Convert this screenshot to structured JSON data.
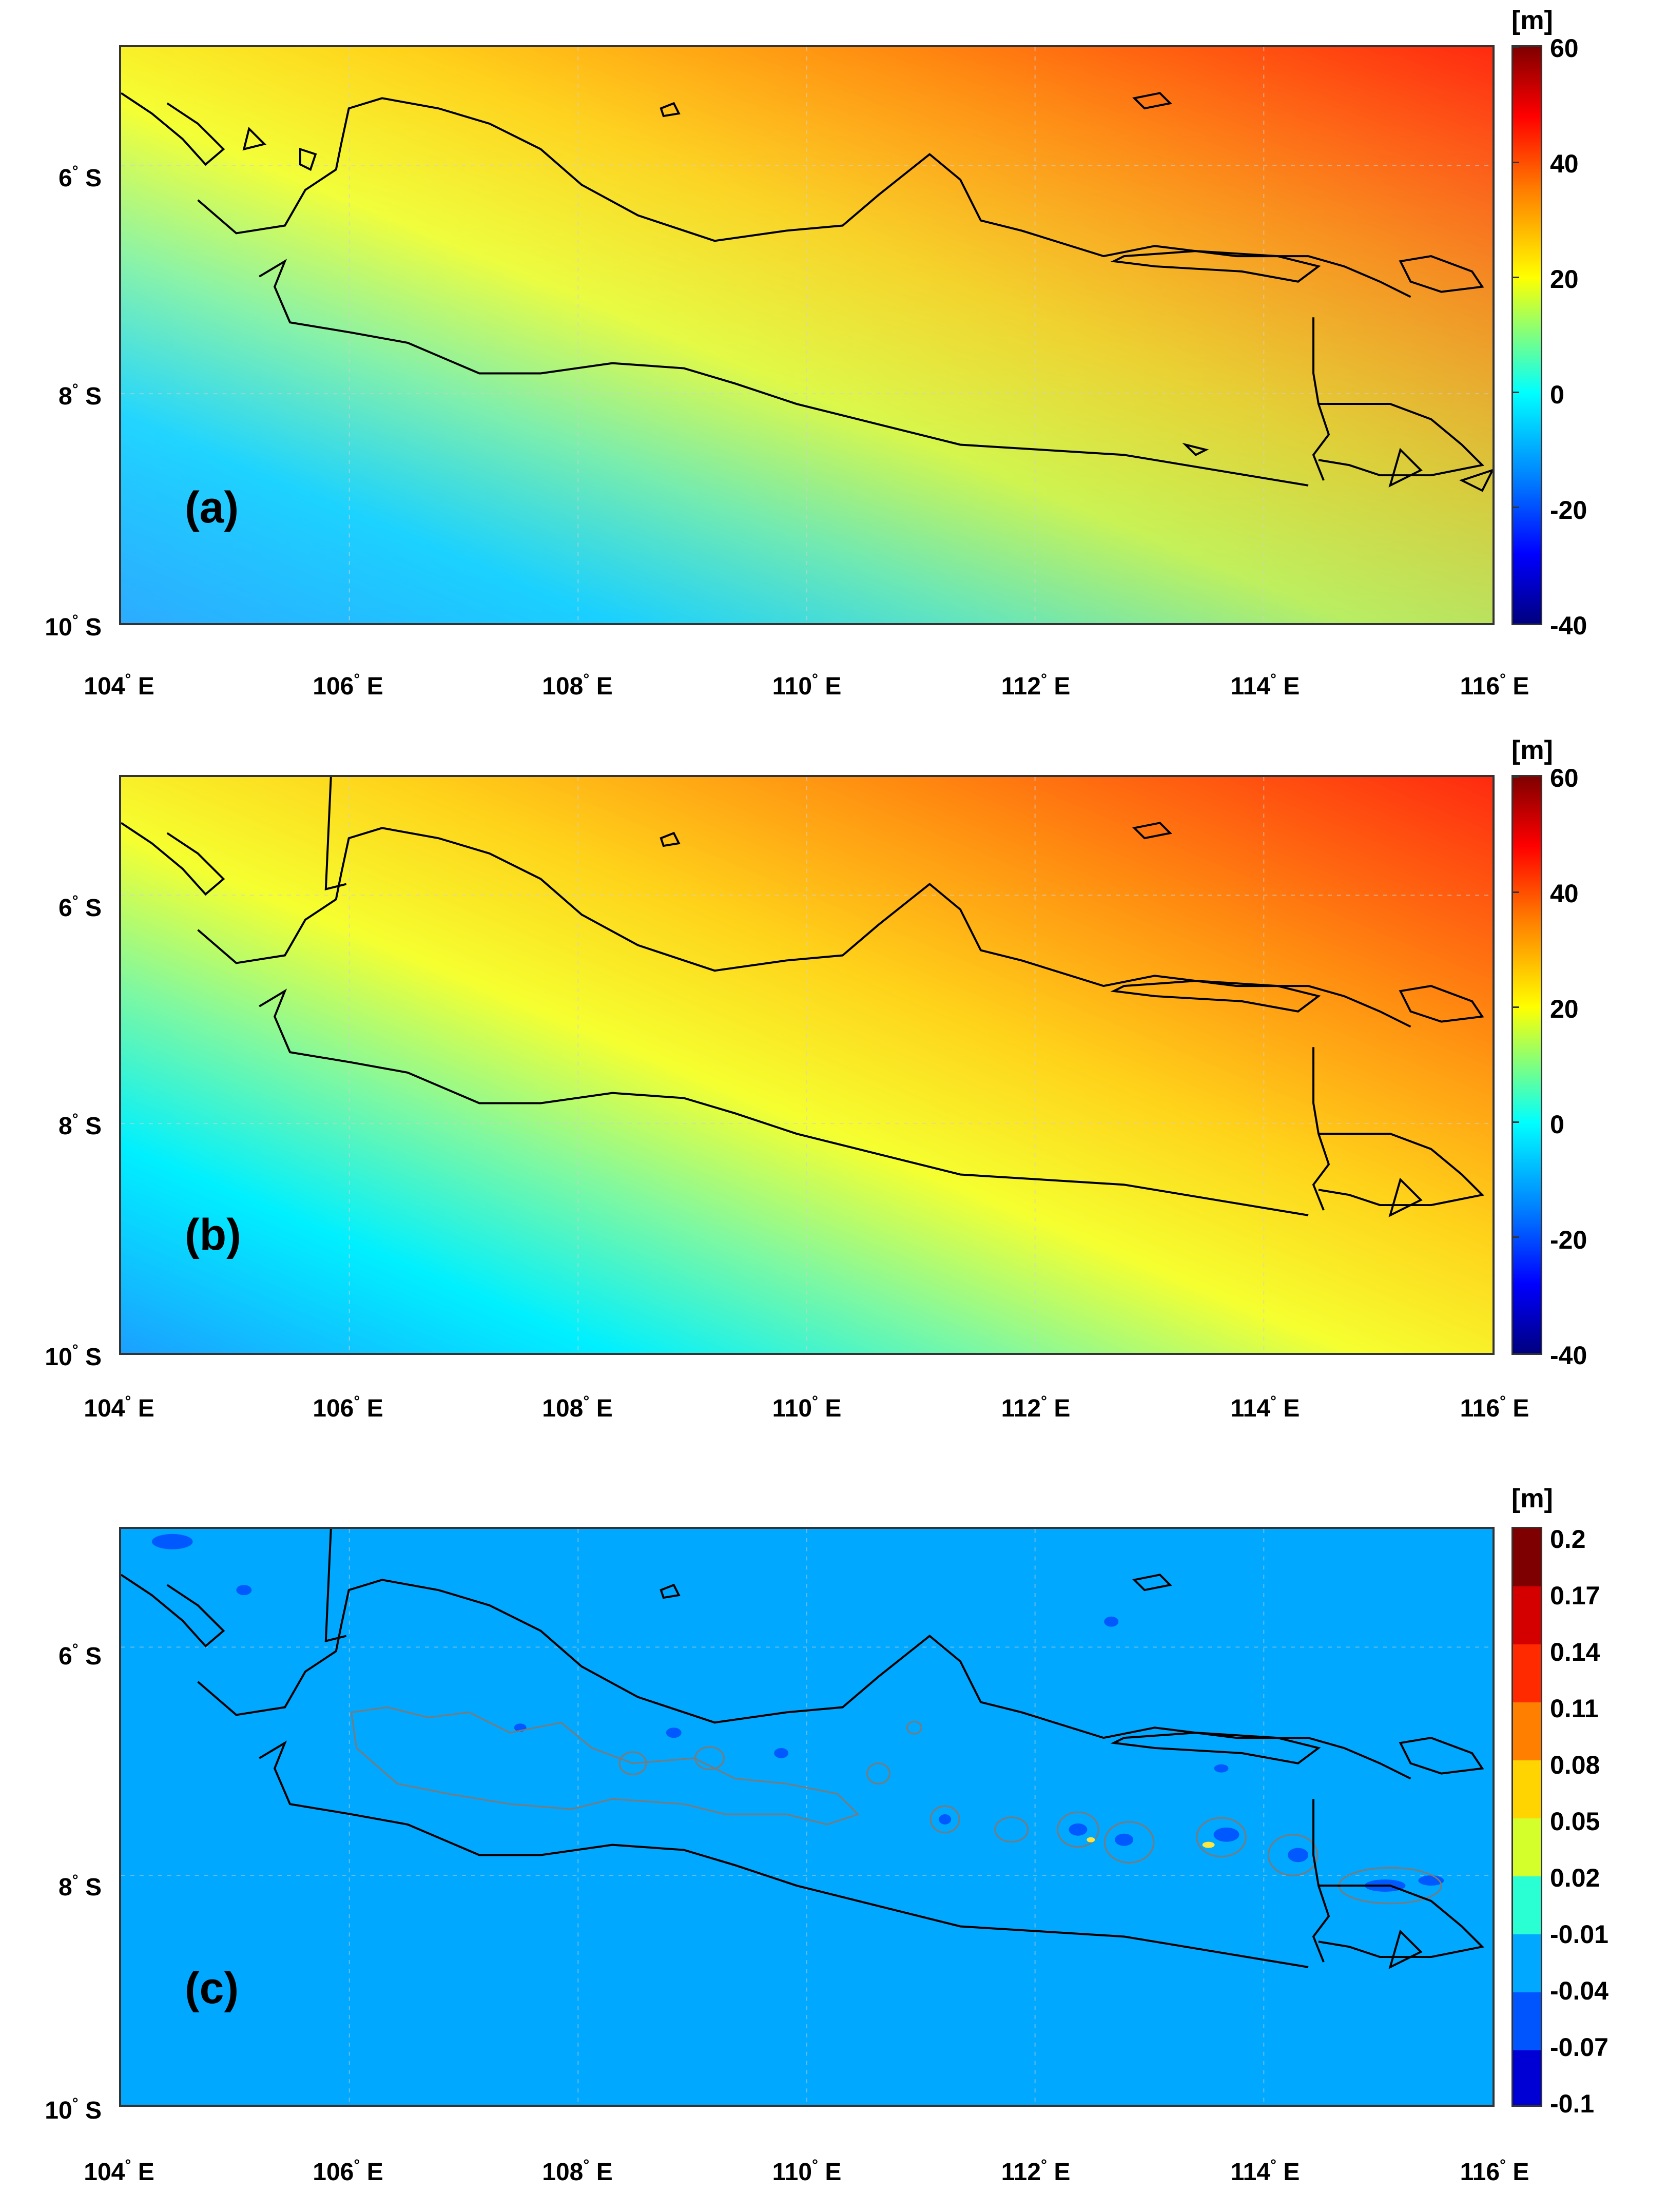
{
  "panels": [
    {
      "letter": "(a)",
      "colorbar": {
        "unit": "[m]",
        "ticks": [
          "60",
          "40",
          "20",
          "0",
          "-20",
          "-40"
        ],
        "range": [
          -40,
          60
        ]
      }
    },
    {
      "letter": "(b)",
      "colorbar": {
        "unit": "[m]",
        "ticks": [
          "60",
          "40",
          "20",
          "0",
          "-20",
          "-40"
        ],
        "range": [
          -40,
          60
        ]
      }
    },
    {
      "letter": "(c)",
      "colorbar": {
        "unit": "[m]",
        "ticks": [
          "0.2",
          "0.17",
          "0.14",
          "0.11",
          "0.08",
          "0.05",
          "0.02",
          "-0.01",
          "-0.04",
          "-0.07",
          "-0.1"
        ],
        "range": [
          -0.1,
          0.2
        ]
      }
    }
  ],
  "axes": {
    "lat_labels": [
      {
        "deg": "6",
        "hem": "S"
      },
      {
        "deg": "8",
        "hem": "S"
      },
      {
        "deg": "10",
        "hem": "S"
      }
    ],
    "lon_labels": [
      {
        "deg": "104",
        "hem": "E"
      },
      {
        "deg": "106",
        "hem": "E"
      },
      {
        "deg": "108",
        "hem": "E"
      },
      {
        "deg": "110",
        "hem": "E"
      },
      {
        "deg": "112",
        "hem": "E"
      },
      {
        "deg": "114",
        "hem": "E"
      },
      {
        "deg": "116",
        "hem": "E"
      }
    ],
    "degree_symbol": "°"
  },
  "colors": {
    "jet_low": "#00007f",
    "jet_cyan": "#00ffff",
    "jet_yellow": "#ffff00",
    "jet_high": "#7f0000",
    "diff_background": "#00a8ff",
    "coastline": "#000000"
  }
}
